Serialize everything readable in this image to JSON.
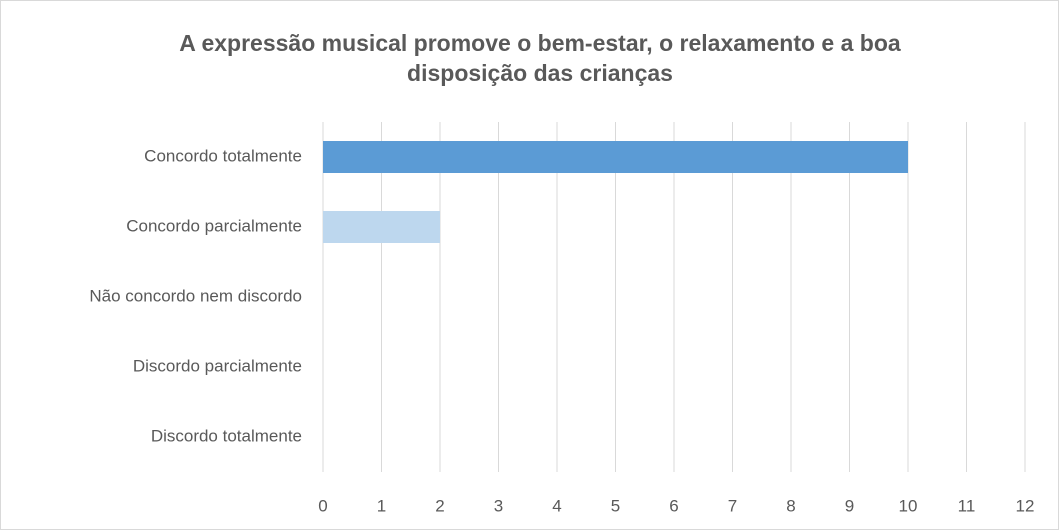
{
  "chart_data": {
    "type": "barh",
    "title": "A expressão musical promove o bem-estar, o relaxamento e a boa disposição das crianças",
    "categories": [
      "Concordo totalmente",
      "Concordo parcialmente",
      "Não concordo nem discordo",
      "Discordo parcialmente",
      "Discordo totalmente"
    ],
    "values": [
      10,
      2,
      0,
      0,
      0
    ],
    "colors": [
      "#5b9bd5",
      "#bdd7ee",
      "#5b9bd5",
      "#bdd7ee",
      "#5b9bd5"
    ],
    "xlim": [
      0,
      12
    ],
    "xticks": [
      0,
      1,
      2,
      3,
      4,
      5,
      6,
      7,
      8,
      9,
      10,
      11,
      12
    ],
    "grid": true
  }
}
